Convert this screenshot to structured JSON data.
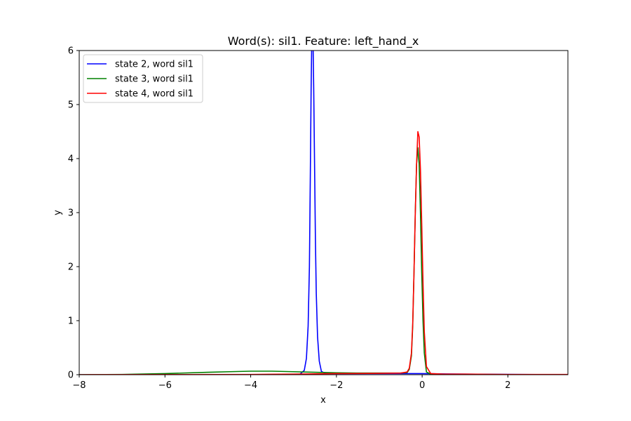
{
  "chart_data": {
    "type": "line",
    "title": "Word(s): sil1. Feature: left_hand_x",
    "xlabel": "x",
    "ylabel": "y",
    "xlim": [
      -8,
      3.4
    ],
    "ylim": [
      0,
      6
    ],
    "xticks": [
      -8,
      -6,
      -4,
      -2,
      0,
      2
    ],
    "yticks": [
      0,
      1,
      2,
      3,
      4,
      5,
      6
    ],
    "grid": false,
    "legend_position": "upper-left",
    "series": [
      {
        "name": "state 2, word sil1",
        "color": "#0000ff",
        "x": [
          -8,
          -3.0,
          -2.85,
          -2.75,
          -2.7,
          -2.66,
          -2.63,
          -2.61,
          -2.59,
          -2.57,
          -2.55,
          -2.53,
          -2.51,
          -2.49,
          -2.47,
          -2.44,
          -2.4,
          -2.35,
          -2.25,
          -2.1,
          -1.8,
          -1.0,
          0.0,
          1.0,
          3.4
        ],
        "y": [
          0,
          0,
          0.01,
          0.08,
          0.3,
          0.9,
          2.0,
          3.6,
          5.3,
          6.5,
          6.4,
          5.3,
          3.9,
          2.5,
          1.5,
          0.7,
          0.25,
          0.06,
          0.02,
          0.02,
          0.02,
          0.02,
          0.02,
          0.01,
          0.0
        ]
      },
      {
        "name": "state 3, word sil1",
        "color": "#008000",
        "x": [
          -8,
          -7,
          -6,
          -5,
          -4.5,
          -4,
          -3.5,
          -3,
          -2.5,
          -2,
          -1.5,
          -1,
          -0.5,
          -0.35,
          -0.3,
          -0.25,
          -0.22,
          -0.19,
          -0.16,
          -0.13,
          -0.1,
          -0.07,
          -0.04,
          -0.01,
          0.02,
          0.05,
          0.1,
          0.2,
          0.5,
          1,
          2,
          3.4
        ],
        "y": [
          0,
          0.005,
          0.02,
          0.045,
          0.055,
          0.065,
          0.065,
          0.055,
          0.045,
          0.035,
          0.03,
          0.03,
          0.03,
          0.04,
          0.1,
          0.35,
          0.9,
          1.9,
          3.0,
          3.9,
          4.2,
          3.9,
          3.0,
          1.9,
          1.0,
          0.4,
          0.05,
          0.01,
          0.005,
          0.005,
          0.003,
          0.002
        ]
      },
      {
        "name": "state 4, word sil1",
        "color": "#ff0000",
        "x": [
          -8,
          -4,
          -3,
          -2,
          -1,
          -0.5,
          -0.35,
          -0.3,
          -0.25,
          -0.22,
          -0.19,
          -0.16,
          -0.13,
          -0.1,
          -0.07,
          -0.04,
          -0.01,
          0.02,
          0.05,
          0.1,
          0.2,
          0.5,
          1,
          2,
          3.4
        ],
        "y": [
          0,
          0.005,
          0.01,
          0.02,
          0.025,
          0.03,
          0.05,
          0.12,
          0.4,
          0.95,
          1.9,
          3.0,
          3.9,
          4.5,
          4.4,
          3.8,
          2.8,
          1.7,
          0.8,
          0.15,
          0.02,
          0.01,
          0.01,
          0.005,
          0.005
        ]
      }
    ]
  }
}
